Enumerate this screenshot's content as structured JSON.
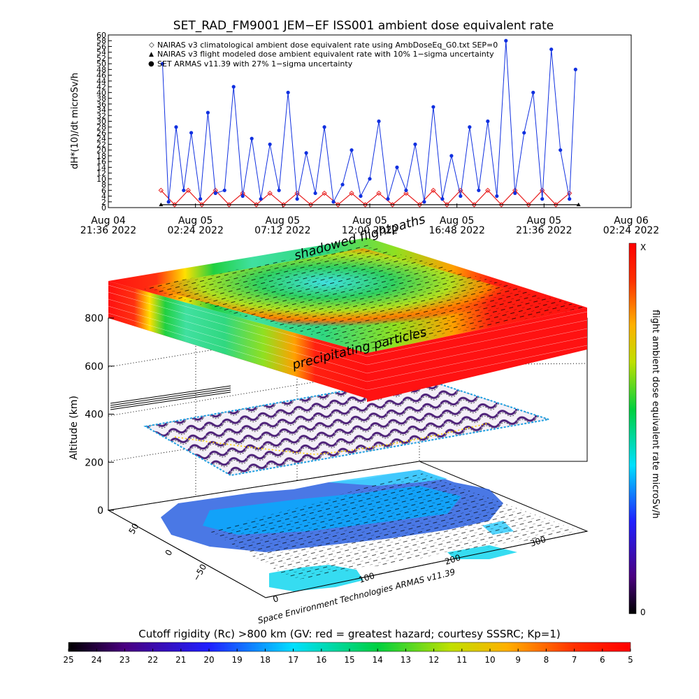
{
  "title": "SET_RAD_FM9001  JEM−EF ISS001 ambient dose equivalent rate",
  "timeseries": {
    "ylabel": "dH*(10)/dt microSv/h",
    "y_ticks": [
      "0",
      "2",
      "4",
      "6",
      "8",
      "10",
      "12",
      "14",
      "16",
      "18",
      "20",
      "22",
      "24",
      "26",
      "28",
      "30",
      "32",
      "34",
      "36",
      "38",
      "40",
      "42",
      "44",
      "46",
      "48",
      "50",
      "52",
      "54",
      "56",
      "58",
      "60"
    ],
    "x_ticks": [
      {
        "date": "Aug 04",
        "time": "21:36 2022"
      },
      {
        "date": "Aug 05",
        "time": "02:24 2022"
      },
      {
        "date": "Aug 05",
        "time": "07:12 2022"
      },
      {
        "date": "Aug 05",
        "time": "12:00 2022"
      },
      {
        "date": "Aug 05",
        "time": "16:48 2022"
      },
      {
        "date": "Aug 05",
        "time": "21:36 2022"
      },
      {
        "date": "Aug 06",
        "time": "02:24 2022"
      }
    ],
    "legend": [
      {
        "symbol": "◇",
        "color": "#e82020",
        "label": "NAIRAS v3 climatological ambient dose equivalent rate using AmbDoseEq_G0.txt SEP=0"
      },
      {
        "symbol": "▲",
        "color": "#000000",
        "label": "NAIRAS v3 flight modeled dose ambient equivalent rate with 10% 1−sigma uncertainty"
      },
      {
        "symbol": "●",
        "color": "#1030e0",
        "label": "SET ARMAS v11.39 with 27% 1−sigma uncertainty"
      }
    ]
  },
  "globe3d": {
    "z_label": "Altitude (km)",
    "z_ticks": [
      "0",
      "200",
      "400",
      "600",
      "800"
    ],
    "lat_ticks": [
      "−50",
      "0",
      "50"
    ],
    "lon_ticks": [
      "0",
      "100",
      "200",
      "300"
    ],
    "label_top": "shadowed flightpaths",
    "label_mid": "precipitating particles",
    "credit": "Space Environment Technologies ARMAS v11.39"
  },
  "colorbar_right": {
    "label": "flight ambient dose equivalent rate microSv/h",
    "top": "X",
    "bottom": "0"
  },
  "colorbar_bottom": {
    "title": "Cutoff rigidity (Rc) >800 km (GV: red = greatest hazard; courtesy SSSRC; Kp=1)",
    "ticks": [
      "25",
      "24",
      "23",
      "22",
      "21",
      "20",
      "19",
      "18",
      "17",
      "16",
      "15",
      "14",
      "13",
      "12",
      "11",
      "10",
      "9",
      "8",
      "7",
      "6",
      "5"
    ]
  },
  "chart_data": {
    "type": "line",
    "title": "SET_RAD_FM9001  JEM−EF ISS001 ambient dose equivalent rate",
    "xlabel": "",
    "ylabel": "dH*(10)/dt microSv/h",
    "x_range": [
      "2022-08-04 21:36",
      "2022-08-06 02:24"
    ],
    "ylim": [
      0,
      60
    ],
    "legend_placement": "top-left",
    "series": [
      {
        "name": "NAIRAS v3 climatological ambient dose equivalent rate using AmbDoseEq_G0.txt SEP=0",
        "marker": "diamond",
        "color": "#e82020",
        "x": [
          "2022-08-05 00:30",
          "2022-08-05 01:15",
          "2022-08-05 02:00",
          "2022-08-05 02:45",
          "2022-08-05 03:30",
          "2022-08-05 04:15",
          "2022-08-05 05:00",
          "2022-08-05 05:45",
          "2022-08-05 06:30",
          "2022-08-05 07:15",
          "2022-08-05 08:00",
          "2022-08-05 08:45",
          "2022-08-05 09:30",
          "2022-08-05 10:15",
          "2022-08-05 11:00",
          "2022-08-05 11:45",
          "2022-08-05 12:30",
          "2022-08-05 13:15",
          "2022-08-05 14:00",
          "2022-08-05 14:45",
          "2022-08-05 15:30",
          "2022-08-05 16:15",
          "2022-08-05 17:00",
          "2022-08-05 17:45",
          "2022-08-05 18:30",
          "2022-08-05 19:15",
          "2022-08-05 20:00",
          "2022-08-05 20:45",
          "2022-08-05 21:30",
          "2022-08-05 22:15",
          "2022-08-05 23:00"
        ],
        "y": [
          6,
          1,
          6,
          1,
          6,
          1,
          5,
          1,
          5,
          1,
          5,
          1,
          5,
          1,
          5,
          1,
          5,
          1,
          5,
          1,
          6,
          1,
          6,
          1,
          6,
          1,
          6,
          1,
          6,
          1,
          5
        ]
      },
      {
        "name": "NAIRAS v3 flight modeled dose ambient equivalent rate with 10% 1−sigma uncertainty",
        "marker": "triangle",
        "color": "#000000",
        "x": [
          "2022-08-05 00:30",
          "2022-08-05 23:30"
        ],
        "y": [
          1,
          1
        ]
      },
      {
        "name": "SET ARMAS v11.39 with 27% 1−sigma uncertainty",
        "marker": "circle",
        "color": "#1030e0",
        "x": [
          "2022-08-05 00:35",
          "2022-08-05 00:55",
          "2022-08-05 01:20",
          "2022-08-05 01:45",
          "2022-08-05 02:10",
          "2022-08-05 02:40",
          "2022-08-05 03:05",
          "2022-08-05 03:30",
          "2022-08-05 04:00",
          "2022-08-05 04:30",
          "2022-08-05 05:00",
          "2022-08-05 05:30",
          "2022-08-05 06:00",
          "2022-08-05 06:30",
          "2022-08-05 07:00",
          "2022-08-05 07:30",
          "2022-08-05 08:00",
          "2022-08-05 08:30",
          "2022-08-05 09:00",
          "2022-08-05 09:30",
          "2022-08-05 10:00",
          "2022-08-05 10:30",
          "2022-08-05 11:00",
          "2022-08-05 11:30",
          "2022-08-05 12:00",
          "2022-08-05 12:30",
          "2022-08-05 13:00",
          "2022-08-05 13:30",
          "2022-08-05 14:00",
          "2022-08-05 14:30",
          "2022-08-05 15:00",
          "2022-08-05 15:30",
          "2022-08-05 16:00",
          "2022-08-05 16:30",
          "2022-08-05 17:00",
          "2022-08-05 17:30",
          "2022-08-05 18:00",
          "2022-08-05 18:30",
          "2022-08-05 19:00",
          "2022-08-05 19:30",
          "2022-08-05 20:00",
          "2022-08-05 20:30",
          "2022-08-05 21:00",
          "2022-08-05 21:30",
          "2022-08-05 22:00",
          "2022-08-05 22:30",
          "2022-08-05 23:00",
          "2022-08-05 23:20"
        ],
        "y": [
          50,
          2,
          28,
          6,
          26,
          3,
          33,
          5,
          6,
          42,
          4,
          24,
          3,
          22,
          6,
          40,
          3,
          19,
          5,
          28,
          2,
          8,
          20,
          4,
          10,
          30,
          3,
          14,
          6,
          22,
          2,
          35,
          3,
          18,
          4,
          28,
          6,
          30,
          4,
          58,
          5,
          26,
          40,
          3,
          55,
          20,
          3,
          48
        ]
      }
    ]
  }
}
